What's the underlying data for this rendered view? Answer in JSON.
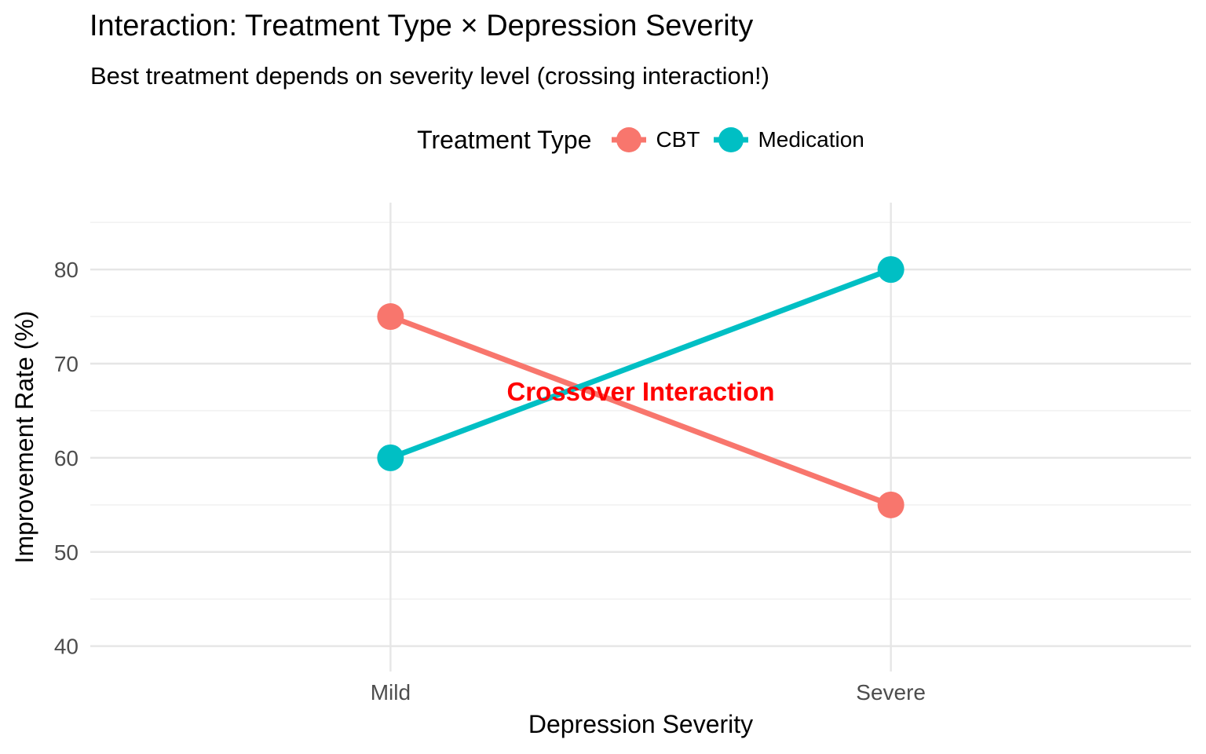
{
  "chart_data": {
    "type": "line",
    "title": "Interaction: Treatment Type × Depression Severity",
    "subtitle": "Best treatment depends on severity level (crossing interaction!)",
    "xlabel": "Depression Severity",
    "ylabel": "Improvement Rate (%)",
    "categories": [
      "Mild",
      "Severe"
    ],
    "series": [
      {
        "name": "CBT",
        "values": [
          75,
          55
        ],
        "color": "#F8766D"
      },
      {
        "name": "Medication",
        "values": [
          60,
          80
        ],
        "color": "#00BFC4"
      }
    ],
    "legend_title": "Treatment Type",
    "legend_position": "top",
    "y_ticks": [
      40,
      50,
      60,
      70,
      80
    ],
    "y_minor_ticks": [
      45,
      55,
      65,
      75,
      85
    ],
    "ylim": [
      37.3,
      87.1
    ],
    "grid": true,
    "annotation": {
      "text": "Crossover Interaction",
      "x": 1.5,
      "y": 67,
      "color": "#FF0000"
    }
  },
  "colors": {
    "grid_major": "#E6E6E6",
    "grid_minor": "#F0F0F0",
    "tick_label": "#4D4D4D",
    "annotation": "#FF0000",
    "background": "#FFFFFF",
    "text": "#000000"
  }
}
